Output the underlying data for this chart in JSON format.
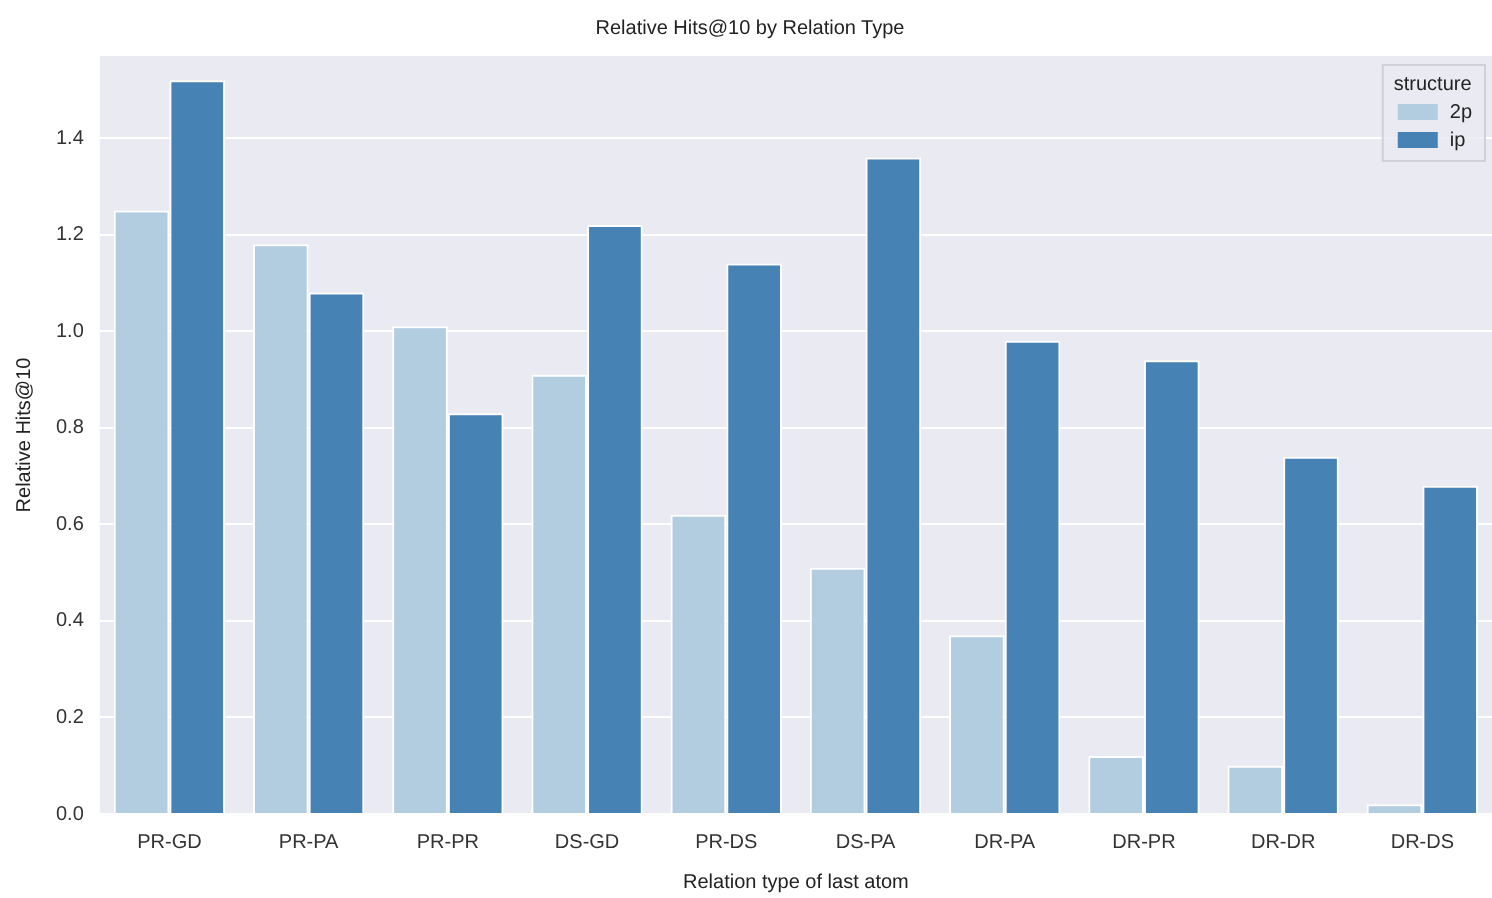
{
  "chart_data": {
    "type": "bar",
    "title": "Relative Hits@10 by Relation Type",
    "xlabel": "Relation type of last atom",
    "ylabel": "Relative Hits@10",
    "legend_title": "structure",
    "categories": [
      "PR-GD",
      "PR-PA",
      "PR-PR",
      "DS-GD",
      "PR-DS",
      "DS-PA",
      "DR-PA",
      "DR-PR",
      "DR-DR",
      "DR-DS"
    ],
    "series": [
      {
        "name": "2p",
        "color": "#b3cde0",
        "values": [
          1.25,
          1.18,
          1.01,
          0.91,
          0.62,
          0.51,
          0.37,
          0.12,
          0.1,
          0.02
        ]
      },
      {
        "name": "ip",
        "color": "#4682b4",
        "values": [
          1.52,
          1.08,
          0.83,
          1.22,
          1.14,
          1.36,
          0.98,
          0.94,
          0.74,
          0.68
        ]
      }
    ],
    "ylim": [
      0,
      1.57
    ],
    "yticks": [
      {
        "value": 0,
        "label": "0.0"
      },
      0.2,
      0.4,
      0.6,
      0.8,
      {
        "value": 1,
        "label": "1.0"
      },
      1.2,
      1.4
    ],
    "grid": "y",
    "legend": "top right"
  }
}
